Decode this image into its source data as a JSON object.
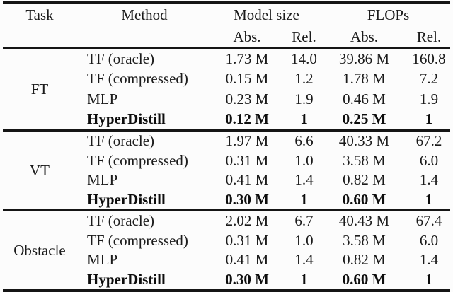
{
  "table": {
    "headers": {
      "task": "Task",
      "method": "Method",
      "model_size": "Model size",
      "flops": "FLOPs",
      "ms_abs": "Abs.",
      "ms_rel": "Rel.",
      "fl_abs": "Abs.",
      "fl_rel": "Rel."
    },
    "groups": [
      {
        "task": "FT",
        "rows": [
          {
            "method": "TF (oracle)",
            "ms_abs": "1.73 M",
            "ms_rel": "14.0",
            "fl_abs": "39.86 M",
            "fl_rel": "160.8"
          },
          {
            "method": "TF (compressed)",
            "ms_abs": "0.15 M",
            "ms_rel": "1.2",
            "fl_abs": "1.78 M",
            "fl_rel": "7.2"
          },
          {
            "method": "MLP",
            "ms_abs": "0.23 M",
            "ms_rel": "1.9",
            "fl_abs": "0.46 M",
            "fl_rel": "1.9"
          },
          {
            "method": "HyperDistill",
            "ms_abs": "0.12 M",
            "ms_rel": "1",
            "fl_abs": "0.25 M",
            "fl_rel": "1"
          }
        ]
      },
      {
        "task": "VT",
        "rows": [
          {
            "method": "TF (oracle)",
            "ms_abs": "1.97 M",
            "ms_rel": "6.6",
            "fl_abs": "40.33 M",
            "fl_rel": "67.2"
          },
          {
            "method": "TF (compressed)",
            "ms_abs": "0.31 M",
            "ms_rel": "1.0",
            "fl_abs": "3.58 M",
            "fl_rel": "6.0"
          },
          {
            "method": "MLP",
            "ms_abs": "0.41 M",
            "ms_rel": "1.4",
            "fl_abs": "0.82 M",
            "fl_rel": "1.4"
          },
          {
            "method": "HyperDistill",
            "ms_abs": "0.30 M",
            "ms_rel": "1",
            "fl_abs": "0.60 M",
            "fl_rel": "1"
          }
        ]
      },
      {
        "task": "Obstacle",
        "rows": [
          {
            "method": "TF (oracle)",
            "ms_abs": "2.02 M",
            "ms_rel": "6.7",
            "fl_abs": "40.43 M",
            "fl_rel": "67.4"
          },
          {
            "method": "TF (compressed)",
            "ms_abs": "0.31 M",
            "ms_rel": "1.0",
            "fl_abs": "3.58 M",
            "fl_rel": "6.0"
          },
          {
            "method": "MLP",
            "ms_abs": "0.41 M",
            "ms_rel": "1.4",
            "fl_abs": "0.82 M",
            "fl_rel": "1.4"
          },
          {
            "method": "HyperDistill",
            "ms_abs": "0.30 M",
            "ms_rel": "1",
            "fl_abs": "0.60 M",
            "fl_rel": "1"
          }
        ]
      }
    ]
  },
  "colors": {
    "text": "#1b1b1b",
    "rule": "#151515",
    "background": "#fcfcfc"
  }
}
